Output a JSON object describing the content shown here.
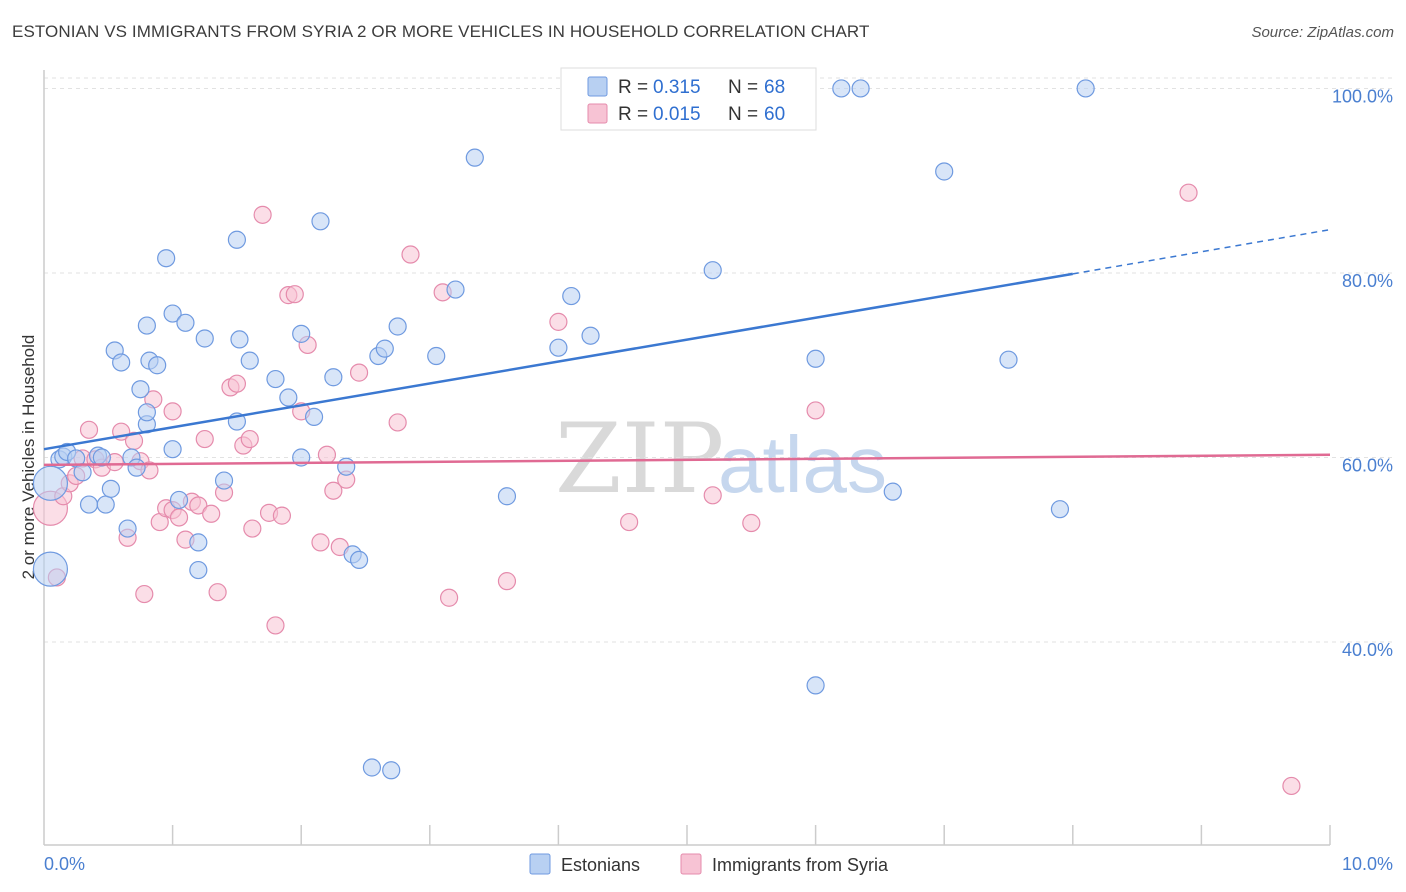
{
  "title": "ESTONIAN VS IMMIGRANTS FROM SYRIA 2 OR MORE VEHICLES IN HOUSEHOLD CORRELATION CHART",
  "source": "Source: ZipAtlas.com",
  "watermark": {
    "zip": "ZIP",
    "atlas": "atlas"
  },
  "colors": {
    "blue": "#3b78d1",
    "blue_fill": "#b8d0f2",
    "pink": "#e06a93",
    "pink_fill": "#f7c3d4",
    "axis_text": "#4a7fd0",
    "grid": "#d9d9d9"
  },
  "legend_top": {
    "rows": [
      {
        "r_label": "R =",
        "r_value": "0.315",
        "n_label": "N =",
        "n_value": "68"
      },
      {
        "r_label": "R =",
        "r_value": "0.015",
        "n_label": "N =",
        "n_value": "60"
      }
    ]
  },
  "chart_data": {
    "type": "scatter",
    "title": "ESTONIAN VS IMMIGRANTS FROM SYRIA 2 OR MORE VEHICLES IN HOUSEHOLD CORRELATION CHART",
    "xlabel": "",
    "ylabel": "2 or more Vehicles in Household",
    "xlim": [
      0,
      10
    ],
    "ylim": [
      18,
      102
    ],
    "x_tick_labels": [
      "0.0%",
      "10.0%"
    ],
    "y_ticks": [
      40,
      60,
      80,
      100
    ],
    "y_tick_labels": [
      "40.0%",
      "60.0%",
      "80.0%",
      "100.0%"
    ],
    "grid": true,
    "legend_position": "top-center",
    "series": [
      {
        "name": "Estonians",
        "color": "#3b78d1",
        "trend": {
          "x": [
            0,
            8.0
          ],
          "y": [
            60.9,
            79.9
          ],
          "dashed_to": [
            10.0,
            84.7
          ]
        },
        "points": [
          [
            0.05,
            47.9
          ],
          [
            0.05,
            57.2
          ],
          [
            0.12,
            59.8
          ],
          [
            0.15,
            60.1
          ],
          [
            0.18,
            60.6
          ],
          [
            0.25,
            59.9
          ],
          [
            0.3,
            58.4
          ],
          [
            0.35,
            54.9
          ],
          [
            0.42,
            60.2
          ],
          [
            0.45,
            60.0
          ],
          [
            0.48,
            54.9
          ],
          [
            0.52,
            56.6
          ],
          [
            0.55,
            71.6
          ],
          [
            0.6,
            70.3
          ],
          [
            0.65,
            52.3
          ],
          [
            0.68,
            60.0
          ],
          [
            0.72,
            58.9
          ],
          [
            0.75,
            67.4
          ],
          [
            0.8,
            63.6
          ],
          [
            0.8,
            64.9
          ],
          [
            0.8,
            74.3
          ],
          [
            0.82,
            70.5
          ],
          [
            0.88,
            70.0
          ],
          [
            0.95,
            81.6
          ],
          [
            1.0,
            75.6
          ],
          [
            1.0,
            60.9
          ],
          [
            1.05,
            55.4
          ],
          [
            1.1,
            74.6
          ],
          [
            1.2,
            50.8
          ],
          [
            1.2,
            47.8
          ],
          [
            1.25,
            72.9
          ],
          [
            1.4,
            57.5
          ],
          [
            1.5,
            83.6
          ],
          [
            1.5,
            63.9
          ],
          [
            1.52,
            72.8
          ],
          [
            1.6,
            70.5
          ],
          [
            1.8,
            68.5
          ],
          [
            1.9,
            66.5
          ],
          [
            2.0,
            60.0
          ],
          [
            2.0,
            73.4
          ],
          [
            2.1,
            64.4
          ],
          [
            2.15,
            85.6
          ],
          [
            2.25,
            68.7
          ],
          [
            2.35,
            59.0
          ],
          [
            2.4,
            49.5
          ],
          [
            2.45,
            48.9
          ],
          [
            2.55,
            26.4
          ],
          [
            2.6,
            71.0
          ],
          [
            2.65,
            71.8
          ],
          [
            2.7,
            26.1
          ],
          [
            2.75,
            74.2
          ],
          [
            3.05,
            71.0
          ],
          [
            3.2,
            78.2
          ],
          [
            3.35,
            92.5
          ],
          [
            3.6,
            55.8
          ],
          [
            4.0,
            71.9
          ],
          [
            4.1,
            77.5
          ],
          [
            4.25,
            73.2
          ],
          [
            5.2,
            80.3
          ],
          [
            6.0,
            35.3
          ],
          [
            6.0,
            70.7
          ],
          [
            6.2,
            100
          ],
          [
            6.35,
            100
          ],
          [
            6.6,
            56.3
          ],
          [
            7.0,
            91.0
          ],
          [
            7.5,
            70.6
          ],
          [
            7.9,
            54.4
          ],
          [
            8.1,
            100
          ]
        ]
      },
      {
        "name": "Immigrants from Syria",
        "color": "#e06a93",
        "trend": {
          "x": [
            0,
            10.0
          ],
          "y": [
            59.2,
            60.3
          ]
        },
        "points": [
          [
            0.05,
            54.5
          ],
          [
            0.1,
            47.0
          ],
          [
            0.15,
            55.8
          ],
          [
            0.2,
            57.2
          ],
          [
            0.25,
            58.0
          ],
          [
            0.3,
            59.9
          ],
          [
            0.35,
            63.0
          ],
          [
            0.4,
            59.8
          ],
          [
            0.45,
            58.9
          ],
          [
            0.55,
            59.5
          ],
          [
            0.6,
            62.8
          ],
          [
            0.65,
            51.3
          ],
          [
            0.7,
            61.8
          ],
          [
            0.75,
            59.6
          ],
          [
            0.78,
            45.2
          ],
          [
            0.82,
            58.6
          ],
          [
            0.85,
            66.3
          ],
          [
            0.9,
            53.0
          ],
          [
            0.95,
            54.5
          ],
          [
            1.0,
            65.0
          ],
          [
            1.0,
            54.3
          ],
          [
            1.05,
            53.5
          ],
          [
            1.1,
            51.1
          ],
          [
            1.15,
            55.2
          ],
          [
            1.2,
            54.8
          ],
          [
            1.25,
            62.0
          ],
          [
            1.3,
            53.9
          ],
          [
            1.35,
            45.4
          ],
          [
            1.4,
            56.2
          ],
          [
            1.45,
            67.6
          ],
          [
            1.5,
            68.0
          ],
          [
            1.55,
            61.3
          ],
          [
            1.6,
            62.0
          ],
          [
            1.62,
            52.3
          ],
          [
            1.7,
            86.3
          ],
          [
            1.75,
            54.0
          ],
          [
            1.8,
            41.8
          ],
          [
            1.85,
            53.7
          ],
          [
            1.9,
            77.6
          ],
          [
            1.95,
            77.7
          ],
          [
            2.0,
            65.0
          ],
          [
            2.05,
            72.2
          ],
          [
            2.15,
            50.8
          ],
          [
            2.2,
            60.3
          ],
          [
            2.25,
            56.4
          ],
          [
            2.3,
            50.3
          ],
          [
            2.35,
            57.6
          ],
          [
            2.45,
            69.2
          ],
          [
            2.75,
            63.8
          ],
          [
            2.85,
            82.0
          ],
          [
            3.1,
            77.9
          ],
          [
            3.15,
            44.8
          ],
          [
            3.6,
            46.6
          ],
          [
            4.0,
            74.7
          ],
          [
            4.55,
            53.0
          ],
          [
            5.2,
            55.9
          ],
          [
            5.5,
            52.9
          ],
          [
            6.0,
            65.1
          ],
          [
            8.9,
            88.7
          ],
          [
            9.7,
            24.4
          ]
        ]
      }
    ]
  }
}
